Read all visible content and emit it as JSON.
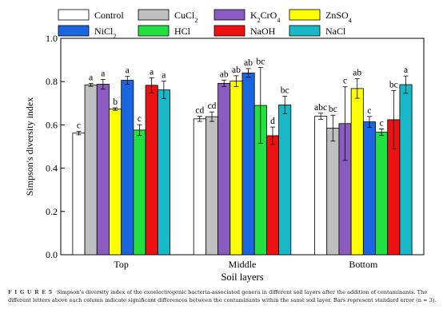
{
  "chart_data": {
    "type": "bar",
    "xlabel": "Soil layers",
    "ylabel": "Simpson's diversity index",
    "ylim": [
      0,
      1.0
    ],
    "yticks": [
      "0.0",
      "0.2",
      "0.4",
      "0.6",
      "0.8",
      "1.0"
    ],
    "categories": [
      "Top",
      "Middle",
      "Bottom"
    ],
    "legend_position": "top",
    "series": [
      {
        "name": "Control",
        "name_sub": "",
        "name_after": "",
        "color": "#ffffff",
        "values": [
          0.562,
          0.628,
          0.64
        ],
        "errors": [
          0.008,
          0.012,
          0.014
        ],
        "letters": [
          "c",
          "cd",
          "abc"
        ]
      },
      {
        "name": "CuCl",
        "name_sub": "2",
        "name_after": "",
        "color": "#bfbfbf",
        "values": [
          0.785,
          0.638,
          0.585
        ],
        "errors": [
          0.007,
          0.022,
          0.06
        ],
        "letters": [
          "a",
          "cd",
          "bc"
        ]
      },
      {
        "name": "K",
        "name_sub": "2",
        "name_after": "CrO",
        "name_sub2": "4",
        "color": "#8a5cc0",
        "values": [
          0.788,
          0.792,
          0.606
        ],
        "errors": [
          0.022,
          0.015,
          0.17
        ],
        "letters": [
          "a",
          "ab",
          "c"
        ]
      },
      {
        "name": "ZnSO",
        "name_sub": "4",
        "name_after": "",
        "color": "#ffff00",
        "values": [
          0.673,
          0.802,
          0.768
        ],
        "errors": [
          0.006,
          0.025,
          0.045
        ],
        "letters": [
          "b",
          "ab",
          "ab"
        ]
      },
      {
        "name": "NiCl",
        "name_sub": "2",
        "name_after": "",
        "color": "#1a66e0",
        "values": [
          0.806,
          0.84,
          0.614
        ],
        "errors": [
          0.018,
          0.02,
          0.025
        ],
        "letters": [
          "a",
          "ab",
          "c"
        ]
      },
      {
        "name": "HCl",
        "name_sub": "",
        "name_after": "",
        "color": "#22e040",
        "values": [
          0.576,
          0.69,
          0.566
        ],
        "errors": [
          0.025,
          0.175,
          0.015
        ],
        "letters": [
          "c",
          "bc",
          "c"
        ]
      },
      {
        "name": "NaOH",
        "name_sub": "",
        "name_after": "",
        "color": "#ee1111",
        "values": [
          0.783,
          0.55,
          0.624
        ],
        "errors": [
          0.035,
          0.04,
          0.135
        ],
        "letters": [
          "a",
          "d",
          "bc"
        ]
      },
      {
        "name": "NaCl",
        "name_sub": "",
        "name_after": "",
        "color": "#19b8c8",
        "values": [
          0.762,
          0.692,
          0.786
        ],
        "errors": [
          0.04,
          0.04,
          0.04
        ],
        "letters": [
          "a",
          "bc",
          "a"
        ]
      }
    ]
  },
  "caption": {
    "label": "F I G U R E 5",
    "text": "Simpson’s diversity index of the exoelectrogenic bacteria-associated genera in different soil layers after the addition of contaminants. The different letters above each column indicate significant differences between the contaminants within the same soil layer. Bars represent standard error (n = 3)."
  }
}
